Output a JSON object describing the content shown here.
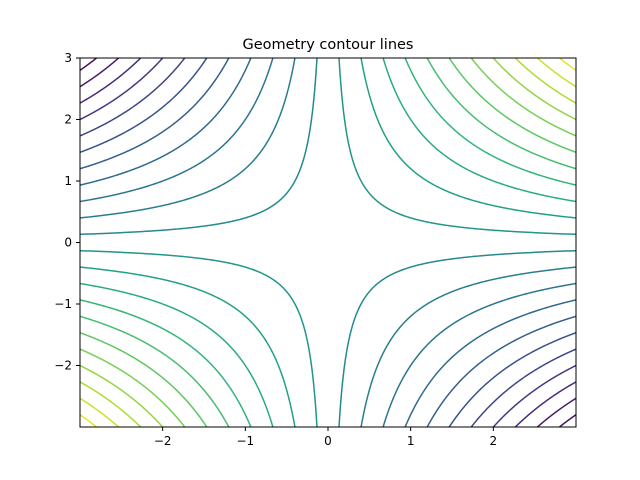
{
  "chart_data": {
    "type": "contour",
    "title": "Geometry contour lines",
    "xlabel": "",
    "ylabel": "",
    "function": "z = x * y",
    "xlim": [
      -3,
      3
    ],
    "ylim": [
      -3,
      3
    ],
    "x_ticks": [
      -2,
      -1,
      0,
      1,
      2
    ],
    "y_ticks": [
      3,
      2,
      1,
      0,
      -1,
      -2
    ],
    "x_tick_labels": [
      "−2",
      "−1",
      "0",
      "1",
      "2"
    ],
    "y_tick_labels": [
      "3",
      "2",
      "1",
      "0",
      "−1",
      "−2"
    ],
    "levels": [
      -8.4,
      -7.6,
      -6.8,
      -6.0,
      -5.2,
      -4.4,
      -3.6,
      -2.8,
      -2.0,
      -1.2,
      -0.4,
      0.4,
      1.2,
      2.0,
      2.8,
      3.6,
      4.4,
      5.2,
      6.0,
      6.8,
      7.6,
      8.4
    ],
    "level_range": [
      -9,
      9
    ],
    "colormap": "viridis",
    "colormap_stops": [
      "#440154",
      "#482878",
      "#3e4989",
      "#31688e",
      "#26828e",
      "#1f9e89",
      "#35b779",
      "#6ece58",
      "#b5de2b",
      "#fde725"
    ],
    "grid": false,
    "legend": "none"
  }
}
